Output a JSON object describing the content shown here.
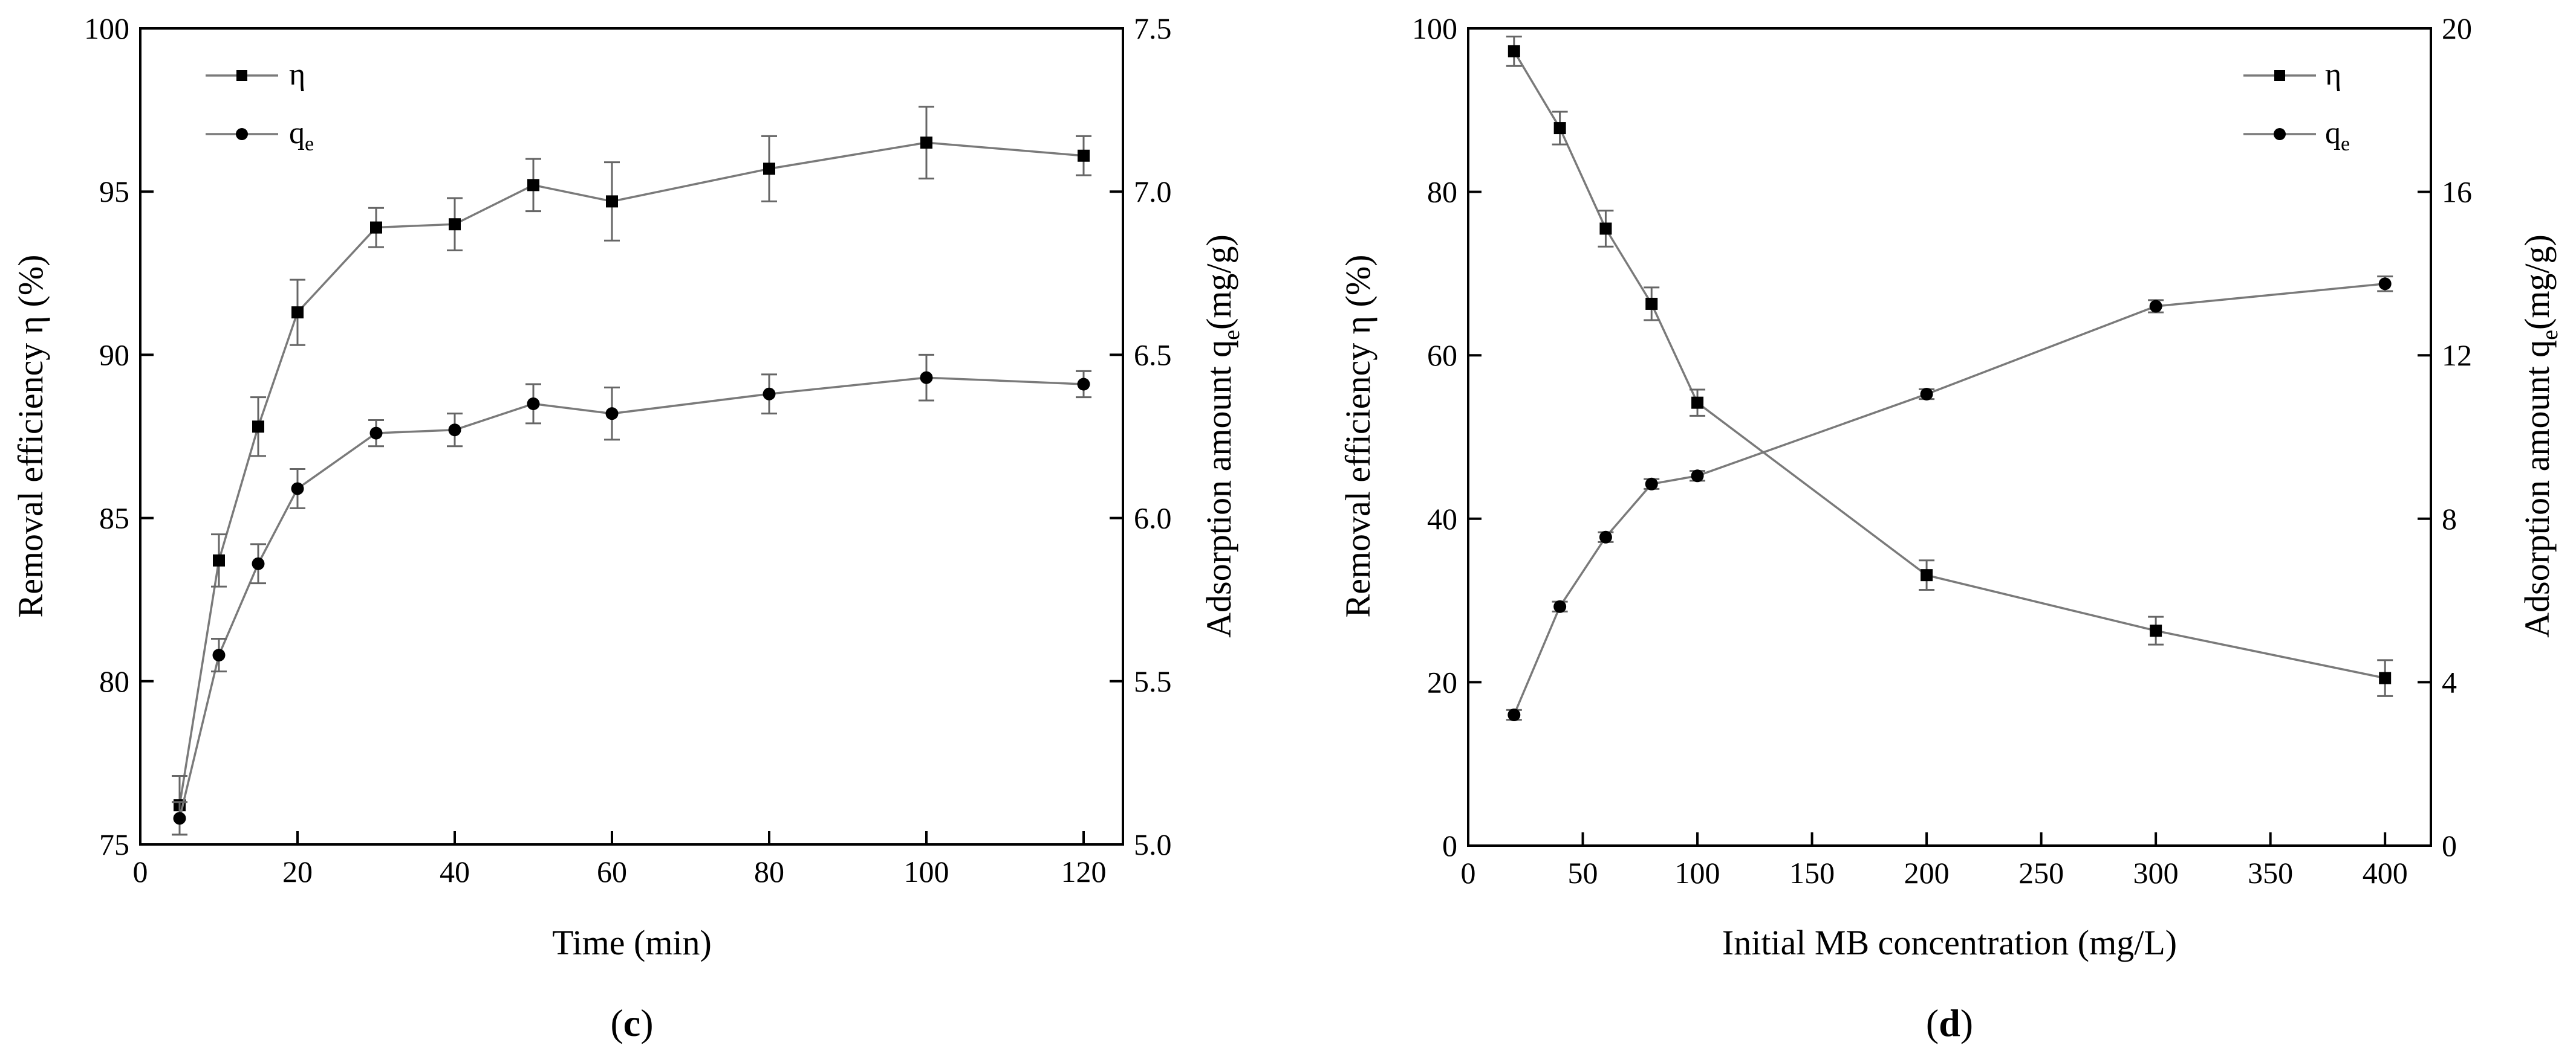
{
  "colors": {
    "series_line": "#7a7a7a",
    "marker": "#000000",
    "error_bar": "#666666",
    "axis": "#000000"
  },
  "chart_data": [
    {
      "id": "c",
      "type": "line",
      "panel_label": {
        "open": "(",
        "letter": "c",
        "close": ")"
      },
      "xlabel": "Time (min)",
      "ylabel_left": "Removal efficiency η (%)",
      "ylabel_right": {
        "prefix": "Adsorption amount q",
        "sub": "e",
        "suffix": "(mg/g)"
      },
      "xlim": [
        0,
        125
      ],
      "ylim_left": [
        75,
        100
      ],
      "ylim_right": [
        5.0,
        7.5
      ],
      "xticks": [
        0,
        20,
        40,
        60,
        80,
        100,
        120
      ],
      "xtick_labels": [
        "0",
        "20",
        "40",
        "60",
        "80",
        "100",
        "120"
      ],
      "yticks_left": [
        75,
        80,
        85,
        90,
        95,
        100
      ],
      "ytick_labels_left": [
        "75",
        "80",
        "85",
        "90",
        "95",
        "100"
      ],
      "yticks_right": [
        5.0,
        5.5,
        6.0,
        6.5,
        7.0,
        7.5
      ],
      "ytick_labels_right": [
        "5.0",
        "5.5",
        "6.0",
        "6.5",
        "7.0",
        "7.5"
      ],
      "legend_position": "top-left",
      "series": [
        {
          "name": "η",
          "label_main": "η",
          "label_sub": "",
          "marker": "square",
          "axis": "left",
          "x": [
            5,
            10,
            15,
            20,
            30,
            40,
            50,
            60,
            80,
            100,
            120
          ],
          "y": [
            76.2,
            83.7,
            87.8,
            91.3,
            93.9,
            94.0,
            95.2,
            94.7,
            95.7,
            96.5,
            96.1
          ],
          "err": [
            0.9,
            0.8,
            0.9,
            1.0,
            0.6,
            0.8,
            0.8,
            1.2,
            1.0,
            1.1,
            0.6
          ]
        },
        {
          "name": "qe",
          "label_main": "q",
          "label_sub": "e",
          "marker": "circle",
          "axis": "right",
          "x": [
            5,
            10,
            15,
            20,
            30,
            40,
            50,
            60,
            80,
            100,
            120
          ],
          "y": [
            5.08,
            5.58,
            5.86,
            6.09,
            6.26,
            6.27,
            6.35,
            6.32,
            6.38,
            6.43,
            6.41
          ],
          "err": [
            0.05,
            0.05,
            0.06,
            0.06,
            0.04,
            0.05,
            0.06,
            0.08,
            0.06,
            0.07,
            0.04
          ]
        }
      ]
    },
    {
      "id": "d",
      "type": "line",
      "panel_label": {
        "open": "(",
        "letter": "d",
        "close": ")"
      },
      "xlabel": "Initial MB concentration (mg/L)",
      "ylabel_left": "Removal efficiency η (%)",
      "ylabel_right": {
        "prefix": "Adsorption amount q",
        "sub": "e",
        "suffix": "(mg/g)"
      },
      "xlim": [
        0,
        420
      ],
      "ylim_left": [
        0,
        100
      ],
      "ylim_right": [
        0,
        20
      ],
      "xticks": [
        0,
        50,
        100,
        150,
        200,
        250,
        300,
        350,
        400
      ],
      "xtick_labels": [
        "0",
        "50",
        "100",
        "150",
        "200",
        "250",
        "300",
        "350",
        "400"
      ],
      "yticks_left": [
        0,
        20,
        40,
        60,
        80,
        100
      ],
      "ytick_labels_left": [
        "0",
        "20",
        "40",
        "60",
        "80",
        "100"
      ],
      "yticks_right": [
        0,
        4,
        8,
        12,
        16,
        20
      ],
      "ytick_labels_right": [
        "0",
        "4",
        "8",
        "12",
        "16",
        "20"
      ],
      "legend_position": "top-right",
      "series": [
        {
          "name": "η",
          "label_main": "η",
          "label_sub": "",
          "marker": "square",
          "axis": "left",
          "x": [
            20,
            40,
            60,
            80,
            100,
            200,
            300,
            400
          ],
          "y": [
            97.2,
            87.8,
            75.5,
            66.3,
            54.2,
            33.1,
            26.3,
            20.5
          ],
          "err": [
            1.8,
            2.0,
            2.2,
            2.0,
            1.6,
            1.8,
            1.7,
            2.2
          ]
        },
        {
          "name": "qe",
          "label_main": "q",
          "label_sub": "e",
          "marker": "circle",
          "axis": "right",
          "x": [
            20,
            40,
            60,
            80,
            100,
            200,
            300,
            400
          ],
          "y": [
            3.2,
            5.85,
            7.55,
            8.85,
            9.05,
            11.05,
            13.2,
            13.75
          ],
          "err": [
            0.12,
            0.12,
            0.12,
            0.12,
            0.12,
            0.12,
            0.15,
            0.18
          ]
        }
      ]
    }
  ]
}
